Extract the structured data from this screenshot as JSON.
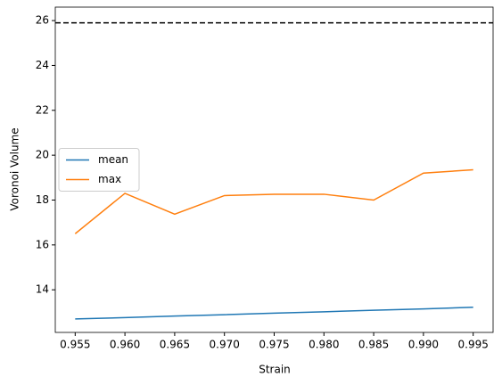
{
  "chart_data": {
    "type": "line",
    "x_label": "Strain",
    "y_label": "Voronoi Volume",
    "x": [
      0.955,
      0.96,
      0.965,
      0.97,
      0.975,
      0.98,
      0.985,
      0.99,
      0.995
    ],
    "series": [
      {
        "name": "mean",
        "color": "#1f77b4",
        "values": [
          12.7,
          12.76,
          12.83,
          12.89,
          12.96,
          13.02,
          13.09,
          13.15,
          13.22
        ]
      },
      {
        "name": "max",
        "color": "#ff7f0e",
        "values": [
          16.5,
          18.3,
          17.37,
          18.2,
          18.26,
          18.26,
          18.0,
          19.2,
          19.35
        ]
      }
    ],
    "hline": {
      "value": 25.9,
      "color": "#000000",
      "style": "dashed"
    },
    "xlim": [
      0.953,
      0.997
    ],
    "xticks": [
      0.955,
      {
        "value": 0.96,
        "label": "0.960"
      },
      0.965,
      {
        "value": 0.97,
        "label": "0.970"
      },
      0.975,
      {
        "value": 0.98,
        "label": "0.980"
      },
      0.985,
      {
        "value": 0.99,
        "label": "0.990"
      },
      0.995
    ],
    "ylim": [
      12.1,
      26.6
    ],
    "yticks": [
      14,
      16,
      18,
      20,
      22,
      24,
      26
    ],
    "grid": false,
    "legend": "center left"
  }
}
